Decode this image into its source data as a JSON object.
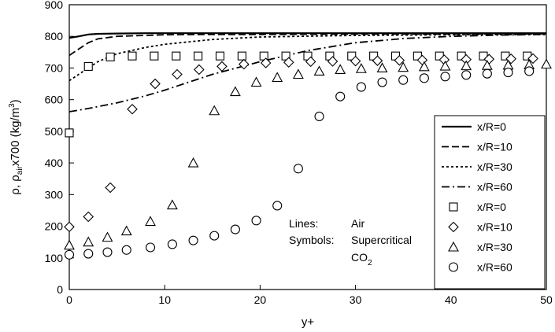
{
  "chart_data": {
    "type": "scatter",
    "title": "",
    "xlabel": "y+",
    "ylabel_parts": {
      "pre": "ρ, ρ",
      "sub": "air",
      "mid": "x700 (kg/m",
      "sup": "3",
      "post": ")"
    },
    "xlim": [
      0,
      50
    ],
    "ylim": [
      0,
      900
    ],
    "x_ticks": [
      0,
      10,
      20,
      30,
      40,
      50
    ],
    "y_ticks": [
      0,
      100,
      200,
      300,
      400,
      500,
      600,
      700,
      800,
      900
    ],
    "grid": false,
    "legend_placement": "right",
    "legend": [
      {
        "label": "x/R=0",
        "style": "solid"
      },
      {
        "label": "x/R=10",
        "style": "dash"
      },
      {
        "label": "x/R=30",
        "style": "dot"
      },
      {
        "label": "x/R=60",
        "style": "dashdot"
      },
      {
        "label": "x/R=0",
        "marker": "square"
      },
      {
        "label": "x/R=10",
        "marker": "diamond"
      },
      {
        "label": "x/R=30",
        "marker": "triangle"
      },
      {
        "label": "x/R=60",
        "marker": "circle"
      }
    ],
    "annotation": {
      "line1_key": "Lines:",
      "line1_val": "Air",
      "line2_key": "Symbols:",
      "line2_val": "Supercritical",
      "line3_main": "CO",
      "line3_sub": "2"
    },
    "lines": [
      {
        "name": "x/R=0",
        "style": "solid",
        "x": [
          0,
          1,
          2,
          3,
          5,
          8,
          10,
          15,
          20,
          30,
          40,
          50
        ],
        "y": [
          795,
          800,
          806,
          808,
          809,
          810,
          810,
          810,
          810,
          810,
          810,
          810
        ]
      },
      {
        "name": "x/R=10",
        "style": "dash",
        "x": [
          0,
          1,
          2,
          3,
          5,
          8,
          10,
          15,
          20,
          30,
          40,
          50
        ],
        "y": [
          740,
          760,
          780,
          792,
          800,
          803,
          805,
          806,
          806,
          807,
          807,
          808
        ]
      },
      {
        "name": "x/R=30",
        "style": "dot",
        "x": [
          0,
          1,
          2,
          3,
          5,
          8,
          10,
          15,
          20,
          30,
          40,
          50
        ],
        "y": [
          660,
          680,
          700,
          720,
          745,
          765,
          775,
          790,
          798,
          803,
          805,
          806
        ]
      },
      {
        "name": "x/R=60",
        "style": "dashdot",
        "x": [
          0,
          2,
          5,
          8,
          10,
          15,
          20,
          25,
          30,
          35,
          40,
          45,
          50
        ],
        "y": [
          562,
          572,
          590,
          612,
          630,
          680,
          720,
          755,
          780,
          793,
          800,
          804,
          806
        ]
      }
    ],
    "series": [
      {
        "name": "x/R=0",
        "marker": "square",
        "x": [
          0,
          2,
          4.3,
          6.6,
          8.9,
          11.2,
          13.5,
          15.8,
          18.1,
          20.4,
          22.7,
          25,
          27.3,
          29.6,
          31.9,
          34.2,
          36.5,
          38.8,
          41.1,
          43.4,
          45.7,
          48
        ],
        "y": [
          495,
          705,
          735,
          738,
          738,
          738,
          738,
          738,
          738,
          738,
          738,
          738,
          738,
          738,
          738,
          738,
          738,
          738,
          738,
          738,
          738,
          738
        ]
      },
      {
        "name": "x/R=10",
        "marker": "diamond",
        "x": [
          0,
          2,
          4.3,
          6.6,
          9,
          11.3,
          13.6,
          16,
          18.3,
          20.6,
          23,
          25.3,
          27.6,
          30,
          32.3,
          34.6,
          37,
          39.3,
          41.6,
          44,
          46.3,
          48.6
        ],
        "y": [
          198,
          230,
          322,
          570,
          650,
          680,
          695,
          705,
          712,
          716,
          718,
          720,
          721,
          722,
          723,
          724,
          725,
          726,
          727,
          728,
          729,
          730
        ]
      },
      {
        "name": "x/R=30",
        "marker": "triangle",
        "x": [
          0,
          2,
          4,
          6,
          8.5,
          10.8,
          13,
          15.2,
          17.4,
          19.6,
          21.8,
          24,
          26.2,
          28.4,
          30.6,
          32.8,
          35,
          37.2,
          39.4,
          41.6,
          43.8,
          46,
          48.2,
          50
        ],
        "y": [
          140,
          150,
          165,
          185,
          215,
          267,
          400,
          565,
          625,
          655,
          670,
          680,
          690,
          695,
          698,
          700,
          702,
          704,
          706,
          707,
          708,
          709,
          710,
          712
        ]
      },
      {
        "name": "x/R=60",
        "marker": "circle",
        "x": [
          0,
          2,
          4,
          6,
          8.5,
          10.8,
          13,
          15.2,
          17.4,
          19.6,
          21.8,
          24,
          26.2,
          28.4,
          30.6,
          32.8,
          35,
          37.2,
          39.4,
          41.6,
          43.8,
          46,
          48.2
        ],
        "y": [
          110,
          113,
          118,
          125,
          133,
          143,
          155,
          170,
          190,
          218,
          265,
          382,
          547,
          610,
          640,
          655,
          662,
          668,
          673,
          678,
          682,
          686,
          690
        ]
      }
    ]
  }
}
